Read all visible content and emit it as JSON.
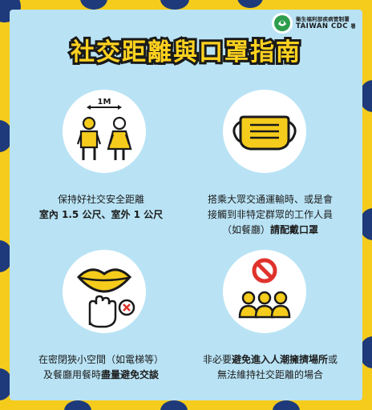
{
  "title": "社交距離與口罩指南",
  "logo": {
    "org_cn": "衛生福利部疾病管制署",
    "org_en": "TAIWAN CDC",
    "org_en_small": "署"
  },
  "panels": {
    "distance": {
      "illustration_label": "1M",
      "line1": "保持好社交安全距離",
      "line2": "室內 1.5 公尺、室外 1 公尺"
    },
    "transport": {
      "line1": "搭乘大眾交通運輸時、或是會",
      "line2": "接觸到非特定群眾的工作人員",
      "line3_prefix": "（如餐廳）",
      "line3_bold": "請配戴口罩"
    },
    "enclosed": {
      "line1": "在密閉狹小空間（如電梯等）",
      "line2_prefix": "及餐廳用餐時",
      "line2_bold": "盡量避免交談"
    },
    "crowd": {
      "line1_prefix": "非必要",
      "line1_bold": "避免進入人潮擁擠場所",
      "line1_suffix": "或",
      "line2": "無法維持社交距離的場合"
    }
  },
  "colors": {
    "background": "#f5cc1c",
    "panel": "#b9e3f5",
    "accent_yellow": "#ffd21f",
    "outline": "#1a1a1a",
    "dot_blue": "#1e3a7a",
    "stop_red": "#e0322c"
  }
}
